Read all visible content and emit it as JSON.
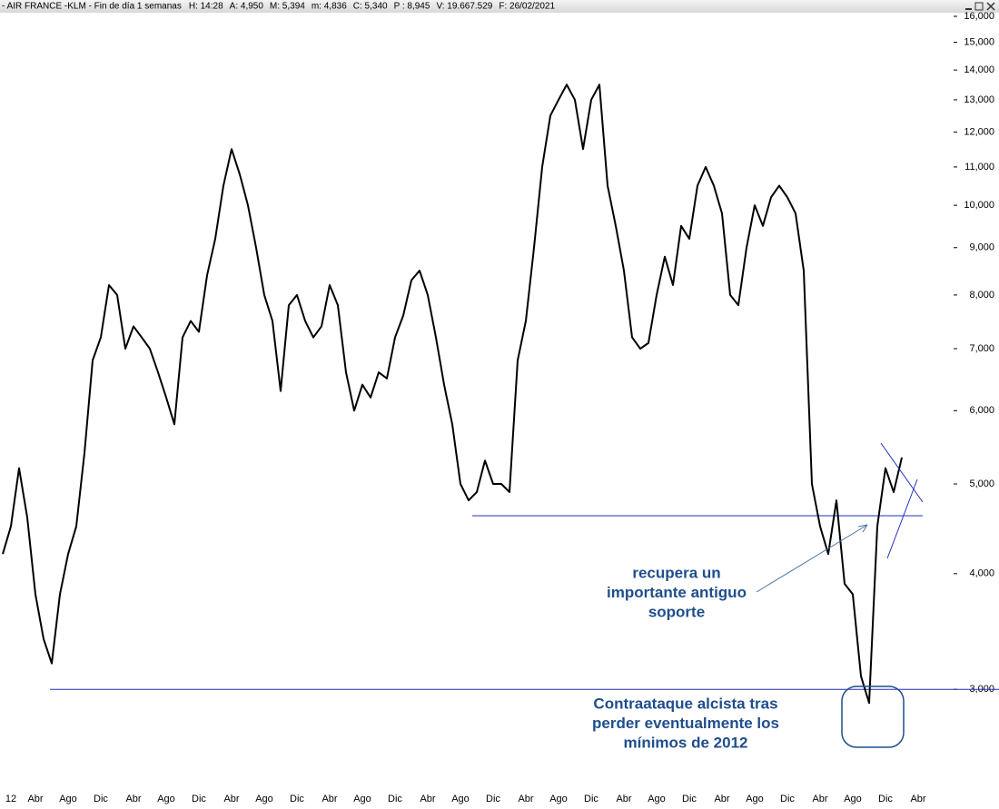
{
  "chart_data": {
    "type": "line",
    "title": "- AIR FRANCE -KLM - Fin de día 1 semanas",
    "info": [
      "H: 14:28",
      "A: 4,950",
      "M: 5,394",
      "m: 4,836",
      "C: 5,340",
      "P : 8,945",
      "V: 19.667.529",
      "F: 26/02/2021"
    ],
    "info_colors": [
      "#000000",
      "#000000",
      "#000000",
      "#000000",
      "#000000",
      "#e00000",
      "#000000",
      "#000000"
    ],
    "log_scale": true,
    "ylim": [
      2.4,
      16
    ],
    "yticks": [
      {
        "value": 3,
        "label": "3,000"
      },
      {
        "value": 4,
        "label": "4,000"
      },
      {
        "value": 5,
        "label": "5,000"
      },
      {
        "value": 6,
        "label": "6,000"
      },
      {
        "value": 7,
        "label": "7,000"
      },
      {
        "value": 8,
        "label": "8,000"
      },
      {
        "value": 9,
        "label": "9,000"
      },
      {
        "value": 10,
        "label": "10,000"
      },
      {
        "value": 11,
        "label": "11,000"
      },
      {
        "value": 12,
        "label": "12,000"
      },
      {
        "value": 13,
        "label": "13,000"
      },
      {
        "value": 14,
        "label": "14,000"
      },
      {
        "value": 15,
        "label": "15,000"
      },
      {
        "value": 16,
        "label": "16,000"
      }
    ],
    "categories": [
      null,
      "12",
      null,
      null,
      "Abr",
      null,
      null,
      null,
      "Ago",
      null,
      null,
      null,
      "Dic",
      null,
      null,
      null,
      "Abr",
      null,
      null,
      null,
      "Ago",
      null,
      null,
      null,
      "Dic",
      null,
      null,
      null,
      "Abr",
      null,
      null,
      null,
      "Ago",
      null,
      null,
      null,
      "Dic",
      null,
      null,
      null,
      "Abr",
      null,
      null,
      null,
      "Ago",
      null,
      null,
      null,
      "Dic",
      null,
      null,
      null,
      "Abr",
      null,
      null,
      null,
      "Ago",
      null,
      null,
      null,
      "Dic",
      null,
      null,
      null,
      "Abr",
      null,
      null,
      null,
      "Ago",
      null,
      null,
      null,
      "Dic",
      null,
      null,
      null,
      "Abr",
      null,
      null,
      null,
      "Ago",
      null,
      null,
      null,
      "Dic",
      null,
      null,
      null,
      "Abr",
      null,
      null,
      null,
      "Ago",
      null,
      null,
      null,
      "Dic",
      null,
      null,
      null,
      "Abr",
      null,
      null,
      null,
      "Ago",
      null,
      null,
      null,
      "Dic",
      null,
      null,
      null,
      "Abr"
    ],
    "series": [
      {
        "name": "AIR FRANCE -KLM",
        "color": "#000000",
        "values": [
          4.2,
          4.5,
          5.2,
          4.6,
          3.8,
          3.4,
          3.2,
          3.8,
          4.2,
          4.5,
          5.4,
          6.8,
          7.2,
          8.2,
          8.0,
          7.0,
          7.4,
          7.2,
          7.0,
          6.6,
          6.2,
          5.8,
          7.2,
          7.5,
          7.3,
          8.4,
          9.2,
          10.5,
          11.5,
          10.8,
          10.0,
          9.0,
          8.0,
          7.5,
          6.3,
          7.8,
          8.0,
          7.5,
          7.2,
          7.4,
          8.2,
          7.8,
          6.6,
          6.0,
          6.4,
          6.2,
          6.6,
          6.5,
          7.2,
          7.6,
          8.3,
          8.5,
          8.0,
          7.2,
          6.4,
          5.8,
          5.0,
          4.8,
          4.9,
          5.3,
          5.0,
          5.0,
          4.9,
          6.8,
          7.5,
          9.0,
          11.0,
          12.5,
          13.0,
          13.5,
          13.0,
          11.5,
          13.0,
          13.5,
          10.5,
          9.5,
          8.5,
          7.2,
          7.0,
          7.1,
          8.0,
          8.8,
          8.2,
          9.5,
          9.2,
          10.5,
          11.0,
          10.5,
          9.8,
          8.0,
          7.8,
          9.0,
          10.0,
          9.5,
          10.2,
          10.5,
          10.2,
          9.8,
          8.5,
          5.0,
          4.5,
          4.2,
          4.8,
          3.9,
          3.8,
          3.1,
          2.9,
          4.5,
          5.2,
          4.9,
          5.34,
          null,
          null
        ]
      }
    ],
    "hlines": [
      4.62,
      3.0
    ],
    "annotations": [
      {
        "lines": [
          "recupera un",
          "importante antiguo",
          "soporte"
        ]
      },
      {
        "lines": [
          "Contraataque alcista tras",
          "perder eventualmente los",
          "mínimos de 2012"
        ]
      }
    ]
  }
}
